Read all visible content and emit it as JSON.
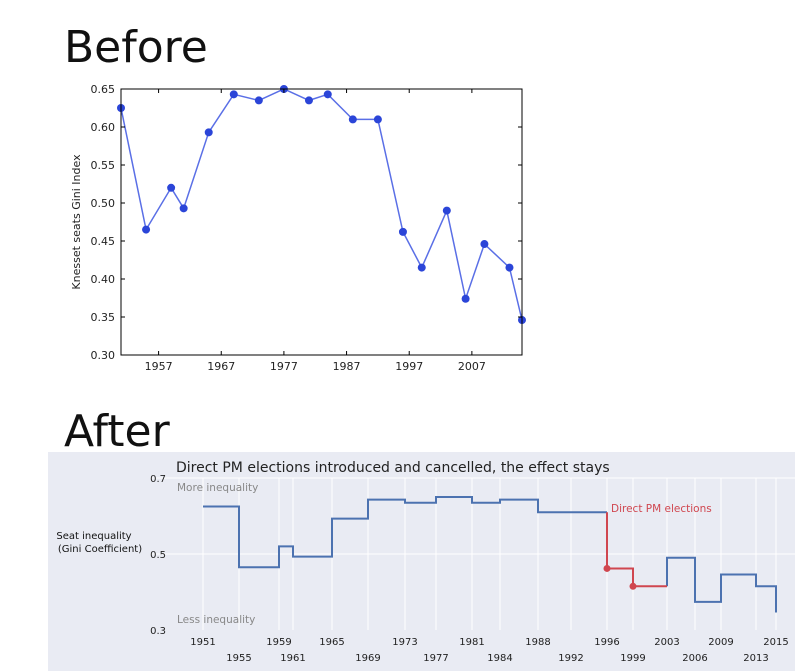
{
  "headings": {
    "before": "Before",
    "after": "After"
  },
  "chart_data": [
    {
      "type": "line",
      "title": "",
      "xlabel": "",
      "ylabel": "Knesset seats Gini Index",
      "xlim": [
        1951,
        2015
      ],
      "ylim": [
        0.3,
        0.65
      ],
      "xticks": [
        1957,
        1967,
        1977,
        1987,
        1997,
        2007
      ],
      "yticks": [
        0.3,
        0.35,
        0.4,
        0.45,
        0.5,
        0.55,
        0.6,
        0.65
      ],
      "ytick_labels": [
        "0.30",
        "0.35",
        "0.40",
        "0.45",
        "0.50",
        "0.55",
        "0.60",
        "0.65"
      ],
      "line_color": "#5a6fe6",
      "marker_color": "#2b45d8",
      "x": [
        1951,
        1955,
        1959,
        1961,
        1965,
        1969,
        1973,
        1977,
        1981,
        1984,
        1988,
        1992,
        1996,
        1999,
        2003,
        2006,
        2009,
        2013,
        2015
      ],
      "y": [
        0.625,
        0.465,
        0.52,
        0.493,
        0.593,
        0.643,
        0.635,
        0.65,
        0.635,
        0.643,
        0.61,
        0.61,
        0.462,
        0.415,
        0.49,
        0.374,
        0.446,
        0.415,
        0.346
      ]
    },
    {
      "type": "step",
      "title": "Direct PM elections introduced and cancelled, the effect stays",
      "xlabel": "",
      "ylabel": "Seat inequality\n(Gini Coefficient)",
      "ylabel_lines": [
        "Seat inequality",
        "(Gini Coefficient)"
      ],
      "ylim": [
        0.3,
        0.7
      ],
      "yticks": [
        0.3,
        0.5,
        0.7
      ],
      "ytick_labels": [
        "0.3",
        "0.5",
        "0.7"
      ],
      "xticks_upper": [
        1951,
        1959,
        1965,
        1973,
        1981,
        1988,
        1996,
        2003,
        2009,
        2015
      ],
      "xticks_lower": [
        1955,
        1961,
        1969,
        1977,
        1984,
        1992,
        1999,
        2006,
        2013
      ],
      "annotations": {
        "top": "More inequality",
        "bottom": "Less inequality",
        "highlight": "Direct PM elections"
      },
      "background": "#e9ebf3",
      "main_color": "#4c72b0",
      "highlight_color": "#d0464f",
      "x": [
        1951,
        1955,
        1959,
        1961,
        1965,
        1969,
        1973,
        1977,
        1981,
        1984,
        1988,
        1992,
        1996,
        1999,
        2003,
        2006,
        2009,
        2013,
        2015
      ],
      "y": [
        0.625,
        0.465,
        0.52,
        0.493,
        0.593,
        0.643,
        0.635,
        0.65,
        0.635,
        0.643,
        0.61,
        0.61,
        0.462,
        0.415,
        0.49,
        0.374,
        0.446,
        0.415,
        0.346
      ],
      "highlight_years": [
        1996,
        1999
      ]
    }
  ]
}
